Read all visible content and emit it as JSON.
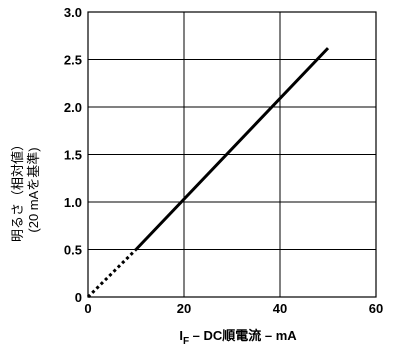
{
  "chart_data": {
    "type": "line",
    "title": "",
    "xlabel": {
      "prefix": "I",
      "subscript": "F",
      "rest": " – DC順電流 – mA"
    },
    "ylabel_lines": [
      "明るさ（相対値）",
      "(20 mAを基準)"
    ],
    "xlim": [
      0,
      60
    ],
    "ylim": [
      0,
      3.0
    ],
    "x_ticks": [
      0,
      20,
      40,
      60
    ],
    "y_ticks": [
      0,
      0.5,
      1.0,
      1.5,
      2.0,
      2.5,
      3.0
    ],
    "x_tick_labels": [
      "0",
      "20",
      "40",
      "60"
    ],
    "y_tick_labels": [
      "0",
      "0.5",
      "1.0",
      "1.5",
      "2.0",
      "2.5",
      "3.0"
    ],
    "grid": true,
    "series": [
      {
        "style": "dotted",
        "x": [
          0,
          10
        ],
        "y": [
          0,
          0.5
        ]
      },
      {
        "style": "solid",
        "x": [
          10,
          50
        ],
        "y": [
          0.5,
          2.62
        ]
      }
    ]
  }
}
